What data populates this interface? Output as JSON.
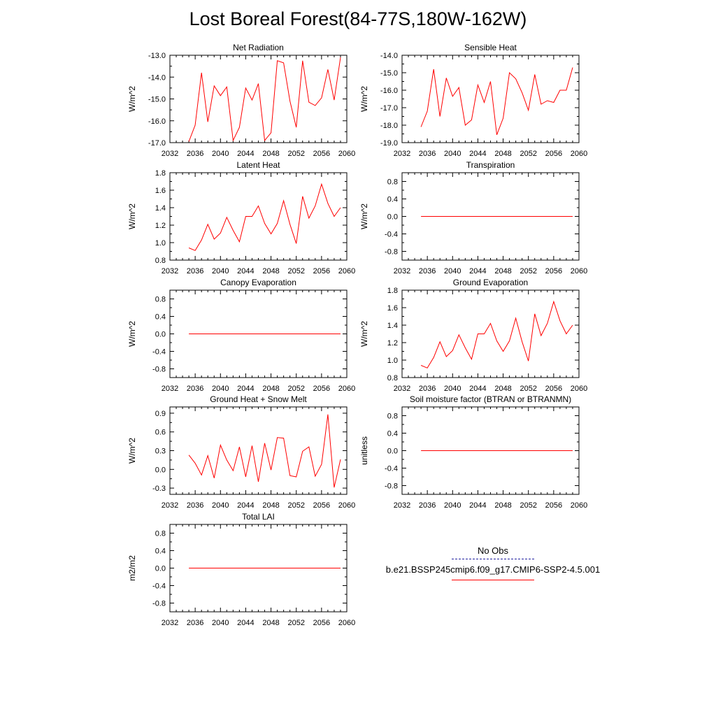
{
  "title": "Lost Boreal Forest(84-77S,180W-162W)",
  "legend": {
    "obs_label": "No Obs",
    "case_label": "b.e21.BSSP245cmip6.f09_g17.CMIP6-SSP2-4.5.001",
    "obs_color": "#2020a0",
    "case_color": "#ff0000"
  },
  "chart_data": [
    {
      "type": "line",
      "title": "Net Radiation",
      "ylabel": "W/m^2",
      "xlim": [
        2032,
        2060
      ],
      "ylim": [
        -17.0,
        -13.0
      ],
      "xticks": [
        "2032",
        "2036",
        "2040",
        "2044",
        "2048",
        "2052",
        "2056",
        "2060"
      ],
      "yticks": [
        "-17.0",
        "-16.0",
        "-15.0",
        "-14.0",
        "-13.0"
      ],
      "x": [
        2035,
        2036,
        2037,
        2038,
        2039,
        2040,
        2041,
        2042,
        2043,
        2044,
        2045,
        2046,
        2047,
        2048,
        2049,
        2050,
        2051,
        2052,
        2053,
        2054,
        2055,
        2056,
        2057,
        2058,
        2059
      ],
      "series": [
        {
          "values": [
            -16.95,
            -16.2,
            -13.8,
            -16.05,
            -14.4,
            -14.85,
            -14.45,
            -16.9,
            -16.3,
            -14.5,
            -15.05,
            -14.3,
            -16.9,
            -16.55,
            -13.25,
            -13.35,
            -15.1,
            -16.3,
            -13.25,
            -15.15,
            -15.3,
            -14.95,
            -13.65,
            -15.05,
            -13.1
          ]
        }
      ],
      "line_color": "#ff0000"
    },
    {
      "type": "line",
      "title": "Sensible Heat",
      "ylabel": "W/m^2",
      "xlim": [
        2032,
        2060
      ],
      "ylim": [
        -19.0,
        -14.0
      ],
      "xticks": [
        "2032",
        "2036",
        "2040",
        "2044",
        "2048",
        "2052",
        "2056",
        "2060"
      ],
      "yticks": [
        "-19.0",
        "-18.0",
        "-17.0",
        "-16.0",
        "-15.0",
        "-14.0"
      ],
      "x": [
        2035,
        2036,
        2037,
        2038,
        2039,
        2040,
        2041,
        2042,
        2043,
        2044,
        2045,
        2046,
        2047,
        2048,
        2049,
        2050,
        2051,
        2052,
        2053,
        2054,
        2055,
        2056,
        2057,
        2058,
        2059
      ],
      "series": [
        {
          "values": [
            -18.1,
            -17.2,
            -14.8,
            -17.5,
            -15.3,
            -16.35,
            -15.85,
            -18.0,
            -17.7,
            -15.7,
            -16.7,
            -15.5,
            -18.55,
            -17.6,
            -15.0,
            -15.35,
            -16.15,
            -17.15,
            -15.1,
            -16.8,
            -16.6,
            -16.7,
            -16.0,
            -16.0,
            -14.7
          ]
        }
      ],
      "line_color": "#ff0000"
    },
    {
      "type": "line",
      "title": "Latent Heat",
      "ylabel": "W/m^2",
      "xlim": [
        2032,
        2060
      ],
      "ylim": [
        0.8,
        1.8
      ],
      "xticks": [
        "2032",
        "2036",
        "2040",
        "2044",
        "2048",
        "2052",
        "2056",
        "2060"
      ],
      "yticks": [
        "0.8",
        "1.0",
        "1.2",
        "1.4",
        "1.6",
        "1.8"
      ],
      "x": [
        2035,
        2036,
        2037,
        2038,
        2039,
        2040,
        2041,
        2042,
        2043,
        2044,
        2045,
        2046,
        2047,
        2048,
        2049,
        2050,
        2051,
        2052,
        2053,
        2054,
        2055,
        2056,
        2057,
        2058,
        2059
      ],
      "series": [
        {
          "values": [
            0.94,
            0.91,
            1.03,
            1.21,
            1.04,
            1.11,
            1.29,
            1.14,
            1.01,
            1.3,
            1.3,
            1.42,
            1.22,
            1.1,
            1.22,
            1.48,
            1.21,
            0.99,
            1.53,
            1.28,
            1.42,
            1.67,
            1.45,
            1.3,
            1.4
          ]
        }
      ],
      "line_color": "#ff0000"
    },
    {
      "type": "line",
      "title": "Transpiration",
      "ylabel": "W/m^2",
      "xlim": [
        2032,
        2060
      ],
      "ylim": [
        -1.0,
        1.0
      ],
      "xticks": [
        "2032",
        "2036",
        "2040",
        "2044",
        "2048",
        "2052",
        "2056",
        "2060"
      ],
      "yticks": [
        "-0.8",
        "-0.4",
        "0.0",
        "0.4",
        "0.8"
      ],
      "x": [
        2035,
        2059
      ],
      "series": [
        {
          "values": [
            0.0,
            0.0
          ]
        }
      ],
      "line_color": "#ff0000"
    },
    {
      "type": "line",
      "title": "Canopy Evaporation",
      "ylabel": "W/m^2",
      "xlim": [
        2032,
        2060
      ],
      "ylim": [
        -1.0,
        1.0
      ],
      "xticks": [
        "2032",
        "2036",
        "2040",
        "2044",
        "2048",
        "2052",
        "2056",
        "2060"
      ],
      "yticks": [
        "-0.8",
        "-0.4",
        "0.0",
        "0.4",
        "0.8"
      ],
      "x": [
        2035,
        2059
      ],
      "series": [
        {
          "values": [
            0.0,
            0.0
          ]
        }
      ],
      "line_color": "#ff0000"
    },
    {
      "type": "line",
      "title": "Ground Evaporation",
      "ylabel": "W/m^2",
      "xlim": [
        2032,
        2060
      ],
      "ylim": [
        0.8,
        1.8
      ],
      "xticks": [
        "2032",
        "2036",
        "2040",
        "2044",
        "2048",
        "2052",
        "2056",
        "2060"
      ],
      "yticks": [
        "0.8",
        "1.0",
        "1.2",
        "1.4",
        "1.6",
        "1.8"
      ],
      "x": [
        2035,
        2036,
        2037,
        2038,
        2039,
        2040,
        2041,
        2042,
        2043,
        2044,
        2045,
        2046,
        2047,
        2048,
        2049,
        2050,
        2051,
        2052,
        2053,
        2054,
        2055,
        2056,
        2057,
        2058,
        2059
      ],
      "series": [
        {
          "values": [
            0.94,
            0.91,
            1.03,
            1.21,
            1.04,
            1.11,
            1.29,
            1.14,
            1.01,
            1.3,
            1.3,
            1.42,
            1.22,
            1.1,
            1.22,
            1.48,
            1.21,
            0.99,
            1.53,
            1.28,
            1.42,
            1.67,
            1.45,
            1.3,
            1.4
          ]
        }
      ],
      "line_color": "#ff0000"
    },
    {
      "type": "line",
      "title": "Ground Heat + Snow Melt",
      "ylabel": "W/m^2",
      "xlim": [
        2032,
        2060
      ],
      "ylim": [
        -0.4,
        1.0
      ],
      "xticks": [
        "2032",
        "2036",
        "2040",
        "2044",
        "2048",
        "2052",
        "2056",
        "2060"
      ],
      "yticks": [
        "-0.3",
        "0.0",
        "0.3",
        "0.6",
        "0.9"
      ],
      "x": [
        2035,
        2036,
        2037,
        2038,
        2039,
        2040,
        2041,
        2042,
        2043,
        2044,
        2045,
        2046,
        2047,
        2048,
        2049,
        2050,
        2051,
        2052,
        2053,
        2054,
        2055,
        2056,
        2057,
        2058,
        2059
      ],
      "series": [
        {
          "values": [
            0.23,
            0.1,
            -0.09,
            0.22,
            -0.14,
            0.39,
            0.15,
            -0.02,
            0.36,
            -0.12,
            0.38,
            -0.2,
            0.42,
            -0.01,
            0.51,
            0.5,
            -0.1,
            -0.12,
            0.29,
            0.36,
            -0.11,
            0.08,
            0.88,
            -0.29,
            0.16
          ]
        }
      ],
      "line_color": "#ff0000"
    },
    {
      "type": "line",
      "title": "Soil moisture factor (BTRAN or BTRANMN)",
      "ylabel": "unitless",
      "xlim": [
        2032,
        2060
      ],
      "ylim": [
        -1.0,
        1.0
      ],
      "xticks": [
        "2032",
        "2036",
        "2040",
        "2044",
        "2048",
        "2052",
        "2056",
        "2060"
      ],
      "yticks": [
        "-0.8",
        "-0.4",
        "0.0",
        "0.4",
        "0.8"
      ],
      "x": [
        2035,
        2059
      ],
      "series": [
        {
          "values": [
            0.0,
            0.0
          ]
        }
      ],
      "line_color": "#ff0000"
    },
    {
      "type": "line",
      "title": "Total LAI",
      "ylabel": "m2/m2",
      "xlim": [
        2032,
        2060
      ],
      "ylim": [
        -1.0,
        1.0
      ],
      "xticks": [
        "2032",
        "2036",
        "2040",
        "2044",
        "2048",
        "2052",
        "2056",
        "2060"
      ],
      "yticks": [
        "-0.8",
        "-0.4",
        "0.0",
        "0.4",
        "0.8"
      ],
      "x": [
        2035,
        2059
      ],
      "series": [
        {
          "values": [
            0.0,
            0.0
          ]
        }
      ],
      "line_color": "#ff0000"
    }
  ]
}
